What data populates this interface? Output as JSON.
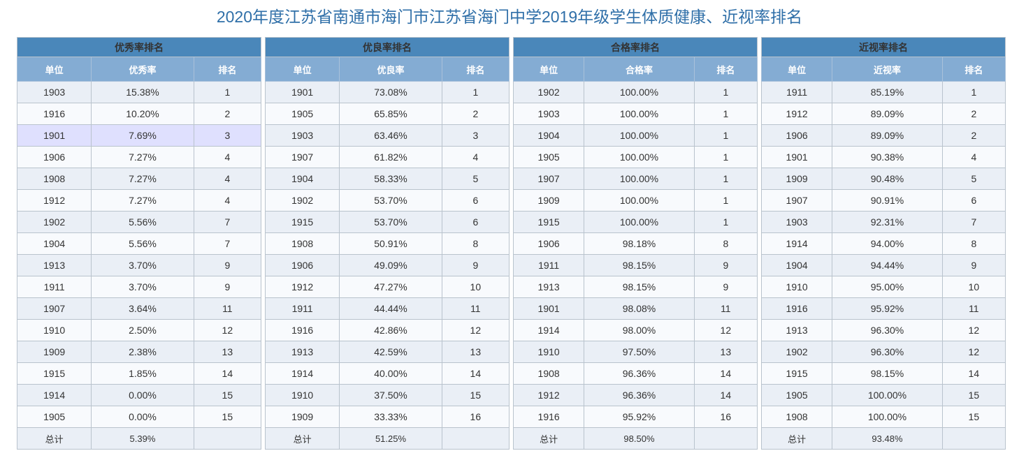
{
  "page_title": "2020年度江苏省南通市海门市江苏省海门中学2019年级学生体质健康、近视率排名",
  "tables": [
    {
      "caption": "优秀率排名",
      "headers": [
        "单位",
        "优秀率",
        "排名"
      ],
      "rows": [
        [
          "1903",
          "15.38%",
          "1"
        ],
        [
          "1916",
          "10.20%",
          "2"
        ],
        [
          "1901",
          "7.69%",
          "3"
        ],
        [
          "1906",
          "7.27%",
          "4"
        ],
        [
          "1908",
          "7.27%",
          "4"
        ],
        [
          "1912",
          "7.27%",
          "4"
        ],
        [
          "1902",
          "5.56%",
          "7"
        ],
        [
          "1904",
          "5.56%",
          "7"
        ],
        [
          "1913",
          "3.70%",
          "9"
        ],
        [
          "1911",
          "3.70%",
          "9"
        ],
        [
          "1907",
          "3.64%",
          "11"
        ],
        [
          "1910",
          "2.50%",
          "12"
        ],
        [
          "1909",
          "2.38%",
          "13"
        ],
        [
          "1915",
          "1.85%",
          "14"
        ],
        [
          "1914",
          "0.00%",
          "15"
        ],
        [
          "1905",
          "0.00%",
          "15"
        ]
      ],
      "total": [
        "总计",
        "5.39%",
        ""
      ]
    },
    {
      "caption": "优良率排名",
      "headers": [
        "单位",
        "优良率",
        "排名"
      ],
      "rows": [
        [
          "1901",
          "73.08%",
          "1"
        ],
        [
          "1905",
          "65.85%",
          "2"
        ],
        [
          "1903",
          "63.46%",
          "3"
        ],
        [
          "1907",
          "61.82%",
          "4"
        ],
        [
          "1904",
          "58.33%",
          "5"
        ],
        [
          "1902",
          "53.70%",
          "6"
        ],
        [
          "1915",
          "53.70%",
          "6"
        ],
        [
          "1908",
          "50.91%",
          "8"
        ],
        [
          "1906",
          "49.09%",
          "9"
        ],
        [
          "1912",
          "47.27%",
          "10"
        ],
        [
          "1911",
          "44.44%",
          "11"
        ],
        [
          "1916",
          "42.86%",
          "12"
        ],
        [
          "1913",
          "42.59%",
          "13"
        ],
        [
          "1914",
          "40.00%",
          "14"
        ],
        [
          "1910",
          "37.50%",
          "15"
        ],
        [
          "1909",
          "33.33%",
          "16"
        ]
      ],
      "total": [
        "总计",
        "51.25%",
        ""
      ]
    },
    {
      "caption": "合格率排名",
      "headers": [
        "单位",
        "合格率",
        "排名"
      ],
      "rows": [
        [
          "1902",
          "100.00%",
          "1"
        ],
        [
          "1903",
          "100.00%",
          "1"
        ],
        [
          "1904",
          "100.00%",
          "1"
        ],
        [
          "1905",
          "100.00%",
          "1"
        ],
        [
          "1907",
          "100.00%",
          "1"
        ],
        [
          "1909",
          "100.00%",
          "1"
        ],
        [
          "1915",
          "100.00%",
          "1"
        ],
        [
          "1906",
          "98.18%",
          "8"
        ],
        [
          "1911",
          "98.15%",
          "9"
        ],
        [
          "1913",
          "98.15%",
          "9"
        ],
        [
          "1901",
          "98.08%",
          "11"
        ],
        [
          "1914",
          "98.00%",
          "12"
        ],
        [
          "1910",
          "97.50%",
          "13"
        ],
        [
          "1908",
          "96.36%",
          "14"
        ],
        [
          "1912",
          "96.36%",
          "14"
        ],
        [
          "1916",
          "95.92%",
          "16"
        ]
      ],
      "total": [
        "总计",
        "98.50%",
        ""
      ]
    },
    {
      "caption": "近视率排名",
      "headers": [
        "单位",
        "近视率",
        "排名"
      ],
      "rows": [
        [
          "1911",
          "85.19%",
          "1"
        ],
        [
          "1912",
          "89.09%",
          "2"
        ],
        [
          "1906",
          "89.09%",
          "2"
        ],
        [
          "1901",
          "90.38%",
          "4"
        ],
        [
          "1909",
          "90.48%",
          "5"
        ],
        [
          "1907",
          "90.91%",
          "6"
        ],
        [
          "1903",
          "92.31%",
          "7"
        ],
        [
          "1914",
          "94.00%",
          "8"
        ],
        [
          "1904",
          "94.44%",
          "9"
        ],
        [
          "1910",
          "95.00%",
          "10"
        ],
        [
          "1916",
          "95.92%",
          "11"
        ],
        [
          "1913",
          "96.30%",
          "12"
        ],
        [
          "1902",
          "96.30%",
          "12"
        ],
        [
          "1915",
          "98.15%",
          "14"
        ],
        [
          "1905",
          "100.00%",
          "15"
        ],
        [
          "1908",
          "100.00%",
          "15"
        ]
      ],
      "total": [
        "总计",
        "93.48%",
        ""
      ]
    }
  ],
  "highlight": {
    "table": 0,
    "row": 2
  },
  "colors": {
    "title": "#2f6fa8",
    "caption_bg": "#4a87ba",
    "header_bg": "#84acd3",
    "row_odd": "#eaeff6",
    "row_even": "#f8fafd",
    "row_highlight": "#dfe0fe"
  }
}
